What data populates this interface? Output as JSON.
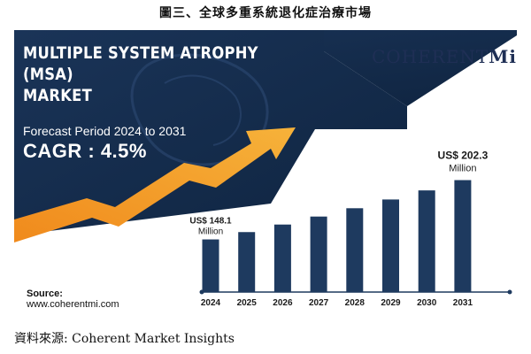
{
  "caption_top": "圖三、全球多重系統退化症治療市場",
  "caption_bottom": "資料來源: Coherent Market Insights",
  "banner": {
    "title_line1": "MULTIPLE SYSTEM ATROPHY (MSA)",
    "title_line2": "MARKET",
    "forecast_text": "Forecast Period 2024 to 2031",
    "cagr_text": "CAGR : 4.5%"
  },
  "logo": {
    "text_main": "COHERENT",
    "text_mi": "Mi"
  },
  "source": {
    "label": "Source:",
    "url": "www.coherentmi.com"
  },
  "colors": {
    "navy": "#1e3a5f",
    "bar": "#1e3a5f",
    "arrow_start": "#f6b23a",
    "arrow_end": "#f08a1c",
    "axis": "#1e3a5f"
  },
  "chart_data": {
    "type": "bar",
    "categories": [
      "2024",
      "2025",
      "2026",
      "2027",
      "2028",
      "2029",
      "2030",
      "2031"
    ],
    "values": [
      148.1,
      154.8,
      161.7,
      169.0,
      176.6,
      184.6,
      192.9,
      202.3
    ],
    "unit": "US$ Million",
    "ylim": [
      100,
      210
    ],
    "grid": false,
    "annotations": [
      {
        "category": "2024",
        "line1": "US$ 148.1",
        "line2": "Million"
      },
      {
        "category": "2031",
        "line1": "US$ 202.3",
        "line2": "Million"
      }
    ]
  }
}
